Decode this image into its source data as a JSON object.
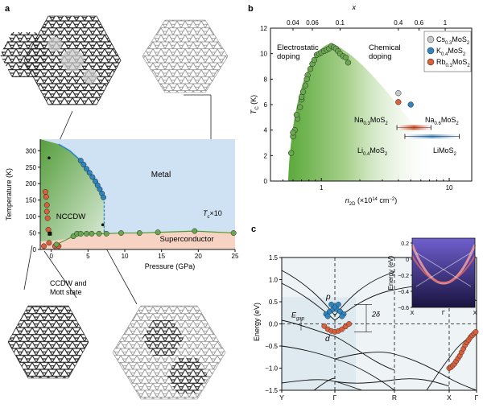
{
  "panels": {
    "a": {
      "letter": "a",
      "phase_labels": {
        "metal": "Metal",
        "nccdw": "NCCDW",
        "superconductor": "Superconductor",
        "tc_scale": "T",
        "tc_scale_sub": "c",
        "tc_scale_suffix": "×10"
      },
      "callout": "CCDW and Mott state",
      "callout_line1": "CCDW and",
      "callout_line2": "Mott state"
    },
    "b": {
      "letter": "b",
      "top_axis_label": "x",
      "top_ticks": [
        "0.04",
        "0.06",
        "0.1",
        "0.4",
        "0.6",
        "1"
      ],
      "left_region": [
        "Electrostatic",
        "doping"
      ],
      "right_region": [
        "Chemical",
        "doping"
      ],
      "legend": [
        {
          "base": "Cs",
          "sub1": "0.3",
          "mid": "MoS",
          "sub2": "2",
          "color": "#c8c8c8"
        },
        {
          "base": "K",
          "sub1": "0.4",
          "mid": "MoS",
          "sub2": "2",
          "color": "#2e86c1"
        },
        {
          "base": "Rb",
          "sub1": "0.3",
          "mid": "MoS",
          "sub2": "2",
          "color": "#d9603b"
        }
      ],
      "annotations": {
        "na03": {
          "base": "Na",
          "sub1": "0.3",
          "mid": "MoS",
          "sub2": "2"
        },
        "na06": {
          "base": "Na",
          "sub1": "0.6",
          "mid": "MoS",
          "sub2": "2"
        },
        "li04": {
          "base": "Li",
          "sub1": "0.4",
          "mid": "MoS",
          "sub2": "2"
        },
        "limos": {
          "base": "LiMoS",
          "sub1": "",
          "mid": "",
          "sub2": "2"
        }
      }
    },
    "c": {
      "letter": "c",
      "labels": {
        "p": "p",
        "d": "d",
        "two_delta": "2δ",
        "egap": "E",
        "egap_sub": "gap"
      },
      "inset": {
        "ylabel": "Energy (eV)",
        "yticks": [
          "0.2",
          "0",
          "−0.2",
          "−0.4",
          "−0.6"
        ],
        "xticks": [
          "X",
          "Γ",
          "X"
        ]
      }
    }
  },
  "chart_data": [
    {
      "type": "scatter",
      "panel": "a",
      "xlabel": "Pressure (GPa)",
      "ylabel": "Temperature (K)",
      "xlim": [
        -1.5,
        25
      ],
      "ylim": [
        0,
        335
      ],
      "xticks": [
        0,
        5,
        10,
        15,
        20,
        25
      ],
      "yticks": [
        0,
        50,
        100,
        150,
        200,
        250,
        300
      ],
      "series": [
        {
          "color": "#2e86c1",
          "x": [
            4.0,
            4.4,
            4.8,
            5.2,
            5.6,
            6.0,
            6.3,
            6.6,
            6.9,
            7.1
          ],
          "y": [
            270,
            258,
            245,
            233,
            220,
            207,
            195,
            183,
            170,
            158
          ]
        },
        {
          "color": "#d9603b",
          "x": [
            -1.0,
            -0.8,
            -0.7,
            -0.6,
            -0.6,
            -0.5,
            -0.4,
            -0.3,
            0.5,
            1.0
          ],
          "y": [
            10,
            175,
            160,
            135,
            115,
            95,
            60,
            20,
            10,
            10
          ]
        },
        {
          "color": "#6aa84f",
          "x": [
            0.7,
            3.0,
            3.5,
            4.0,
            4.8,
            5.5,
            6.5,
            7.5,
            9.5,
            12.0,
            14.5,
            19.5,
            24.8
          ],
          "y": [
            15,
            40,
            48,
            48,
            48,
            48,
            48,
            48,
            50,
            50,
            52,
            56,
            50
          ]
        }
      ],
      "lines": {
        "metal_boundary": {
          "x": [
            1.0,
            2.5,
            4.0,
            5.2,
            6.4,
            7.2
          ],
          "y": [
            320,
            300,
            270,
            235,
            200,
            158
          ]
        },
        "sc_dome": {
          "x": [
            -1.5,
            0,
            3,
            5,
            8,
            12,
            16,
            20,
            25
          ],
          "y": [
            25,
            26,
            36,
            46,
            48,
            50,
            52,
            54,
            55
          ]
        },
        "nccdw_vertical": {
          "x": [
            7.2,
            7.2
          ],
          "y": [
            158,
            48
          ]
        }
      }
    },
    {
      "type": "scatter",
      "panel": "b",
      "xlabel": "n",
      "xlabel_sub": "2D",
      "xlabel_suffix": "(×10",
      "xlabel_sup": "14",
      "xlabel_unit": "cm",
      "xlabel_unit_sup": "−2",
      "xlabel_close": ")",
      "ylabel": "T",
      "ylabel_sub": "C",
      "ylabel_unit": "(K)",
      "xscale": "log",
      "xlim": [
        0.4,
        15
      ],
      "ylim": [
        0,
        12
      ],
      "xticks": [
        "1",
        "10"
      ],
      "yticks": [
        0,
        2,
        4,
        6,
        8,
        10,
        12
      ],
      "series": [
        {
          "color": "#6aa84f",
          "x": [
            0.58,
            0.6,
            0.62,
            0.65,
            0.68,
            0.7,
            0.72,
            0.75,
            0.78,
            0.82,
            0.85,
            0.88,
            0.92,
            0.96,
            1.0,
            1.05,
            1.1,
            1.15,
            1.2,
            1.25,
            1.3,
            1.35,
            1.4,
            1.48,
            1.55,
            1.62,
            0.6,
            0.64,
            0.7,
            0.77
          ],
          "y": [
            2.2,
            3.5,
            4.0,
            4.9,
            5.8,
            6.4,
            7.0,
            7.5,
            8.3,
            8.8,
            9.2,
            9.5,
            9.9,
            10.0,
            10.1,
            10.2,
            10.3,
            10.4,
            10.6,
            10.5,
            10.4,
            10.2,
            10.0,
            9.8,
            9.7,
            9.3,
            3.8,
            5.2,
            6.6,
            8.0
          ]
        },
        {
          "color": "#c8c8c8",
          "x": [
            4.0
          ],
          "y": [
            6.9
          ]
        },
        {
          "color": "#2e86c1",
          "x": [
            5.0
          ],
          "y": [
            6.0
          ]
        },
        {
          "color": "#d9603b",
          "x": [
            4.0
          ],
          "y": [
            6.2
          ]
        }
      ],
      "ranges": [
        {
          "name": "Na",
          "xmin": 3.9,
          "xmax": 7.2,
          "y": 4.2,
          "color": "#d9603b"
        },
        {
          "name": "Li",
          "xmin": 4.5,
          "xmax": 12.0,
          "y": 3.5,
          "color": "#2e86c1"
        }
      ]
    },
    {
      "type": "line",
      "panel": "c",
      "ylabel": "Energy (eV)",
      "ylim": [
        -1.5,
        1.5
      ],
      "yticks": [
        "1.5",
        "1.0",
        "0.5",
        "0.0",
        "−0.5",
        "−1.0",
        "−1.5"
      ],
      "xticks": [
        "Y",
        "Γ",
        "R",
        "X",
        "Γ"
      ],
      "series": [
        {
          "color": "#2e86c1",
          "x": [
            -0.05,
            -0.03,
            -0.01,
            0.01,
            0.03,
            0.05,
            -0.04,
            0.04,
            0.0,
            -0.02,
            0.02
          ],
          "y": [
            0.22,
            0.28,
            0.33,
            0.33,
            0.28,
            0.22,
            0.17,
            0.17,
            0.39,
            0.44,
            0.44
          ]
        },
        {
          "color": "#d9603b",
          "x": [
            -0.06,
            -0.04,
            -0.02,
            0.0,
            0.02,
            0.04,
            0.06,
            0.08
          ],
          "y": [
            -0.05,
            -0.12,
            -0.16,
            -0.18,
            -0.16,
            -0.12,
            -0.06,
            0.0
          ]
        },
        {
          "color": "#d9603b",
          "x": [
            1.0,
            1.02,
            1.04,
            1.06,
            1.08,
            1.1,
            1.12,
            1.14,
            1.16,
            1.18,
            1.2,
            1.22,
            1.24,
            1.26,
            1.28,
            1.3
          ],
          "y": [
            -1.0,
            -0.98,
            -0.94,
            -0.9,
            -0.84,
            -0.78,
            -0.72,
            -0.64,
            -0.56,
            -0.48,
            -0.42,
            -0.36,
            -0.3,
            -0.26,
            -0.22,
            -0.18
          ]
        }
      ]
    }
  ]
}
